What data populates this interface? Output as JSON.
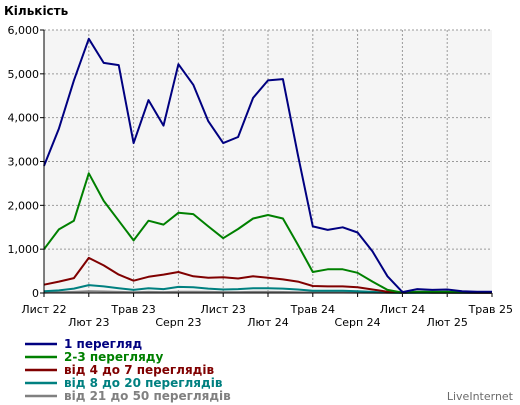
{
  "chart_data": {
    "type": "line",
    "ylabel": "Кількість",
    "ylim": [
      0,
      6000
    ],
    "yticks": [
      {
        "value": 0,
        "label": "0"
      },
      {
        "value": 1000,
        "label": "1,000"
      },
      {
        "value": 2000,
        "label": "2,000"
      },
      {
        "value": 3000,
        "label": "3,000"
      },
      {
        "value": 4000,
        "label": "4,000"
      },
      {
        "value": 5000,
        "label": "5,000"
      },
      {
        "value": 6000,
        "label": "6,000"
      }
    ],
    "xticks": [
      {
        "index": 0,
        "label": "Лист 22",
        "row": 1
      },
      {
        "index": 3,
        "label": "Лют 23",
        "row": 2
      },
      {
        "index": 6,
        "label": "Трав 23",
        "row": 1
      },
      {
        "index": 9,
        "label": "Серп 23",
        "row": 2
      },
      {
        "index": 12,
        "label": "Лист 23",
        "row": 1
      },
      {
        "index": 15,
        "label": "Лют 24",
        "row": 2
      },
      {
        "index": 18,
        "label": "Трав 24",
        "row": 1
      },
      {
        "index": 21,
        "label": "Серп 24",
        "row": 2
      },
      {
        "index": 24,
        "label": "Лист 24",
        "row": 1
      },
      {
        "index": 27,
        "label": "Лют 25",
        "row": 2
      },
      {
        "index": 30,
        "label": "Трав 25",
        "row": 1
      }
    ],
    "grid": true,
    "series": [
      {
        "name": "1 перегляд",
        "color": "#000080",
        "values": [
          2900,
          3750,
          4850,
          5800,
          5250,
          5200,
          3420,
          4400,
          3820,
          5220,
          4750,
          3920,
          3420,
          3560,
          4450,
          4850,
          4880,
          3150,
          1520,
          1440,
          1500,
          1380,
          950,
          380,
          20,
          90,
          70,
          80,
          40,
          30,
          30
        ]
      },
      {
        "name": "2-3 перегляду",
        "color": "#008000",
        "values": [
          1000,
          1450,
          1650,
          2730,
          2100,
          1650,
          1200,
          1650,
          1560,
          1830,
          1800,
          1520,
          1250,
          1460,
          1700,
          1780,
          1700,
          1100,
          480,
          540,
          540,
          460,
          260,
          70,
          10,
          30,
          30,
          30,
          20,
          15,
          15
        ]
      },
      {
        "name": "від 4 до 7 переглядів",
        "color": "#800000",
        "values": [
          190,
          260,
          340,
          800,
          630,
          420,
          280,
          370,
          420,
          480,
          380,
          350,
          360,
          330,
          380,
          350,
          310,
          260,
          160,
          150,
          150,
          130,
          80,
          30,
          5,
          15,
          10,
          10,
          10,
          5,
          5
        ]
      },
      {
        "name": "від 8 до 20 переглядів",
        "color": "#008080",
        "values": [
          40,
          60,
          100,
          180,
          150,
          110,
          70,
          110,
          90,
          140,
          130,
          100,
          80,
          90,
          110,
          110,
          100,
          80,
          50,
          50,
          50,
          40,
          25,
          10,
          3,
          6,
          5,
          5,
          4,
          3,
          3
        ]
      },
      {
        "name": "від 21 до 50 переглядів",
        "color": "#808080",
        "values": [
          10,
          15,
          25,
          40,
          35,
          25,
          15,
          25,
          20,
          30,
          30,
          25,
          20,
          20,
          25,
          25,
          22,
          18,
          12,
          12,
          12,
          10,
          6,
          3,
          1,
          2,
          2,
          2,
          1,
          1,
          1
        ]
      }
    ]
  },
  "footer": {
    "brand": "LiveInternet"
  }
}
